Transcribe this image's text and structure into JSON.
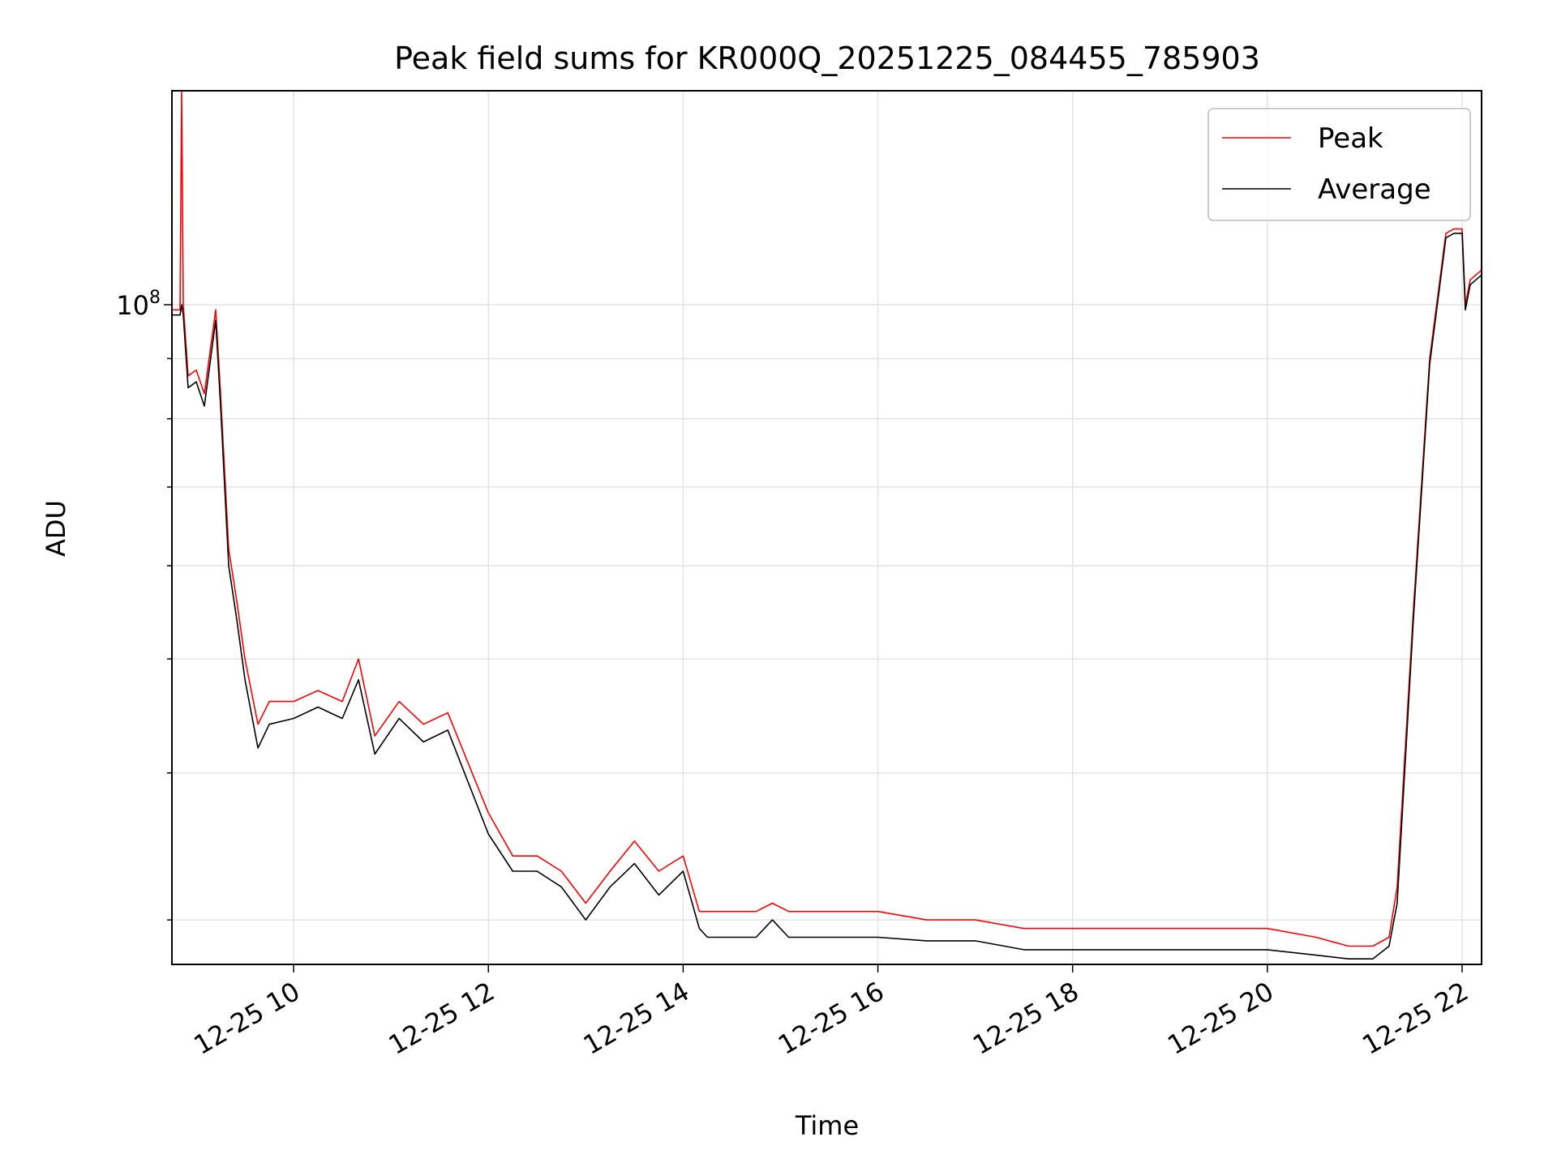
{
  "chart_data": {
    "type": "line",
    "title": "Peak field sums for KR000Q_20251225_084455_785903",
    "xlabel": "Time",
    "ylabel": "ADU",
    "y_scale": "log",
    "ylim": [
      27500000,
      152000000
    ],
    "xlim": [
      "12-25 08:45",
      "12-25 22:12"
    ],
    "x_ticks": [
      "12-25 10",
      "12-25 12",
      "12-25 14",
      "12-25 16",
      "12-25 18",
      "12-25 20",
      "12-25 22"
    ],
    "y_ticks": [
      "10^8"
    ],
    "grid": true,
    "legend": "upper right",
    "colors": {
      "Peak": "#ff0000",
      "Average": "#000000"
    },
    "series": [
      {
        "name": "Peak",
        "x": [
          "12-25 08:45",
          "12-25 08:50",
          "12-25 08:51",
          "12-25 08:52",
          "12-25 08:55",
          "12-25 09:00",
          "12-25 09:05",
          "12-25 09:12",
          "12-25 09:15",
          "12-25 09:20",
          "12-25 09:25",
          "12-25 09:30",
          "12-25 09:38",
          "12-25 09:45",
          "12-25 10:00",
          "12-25 10:15",
          "12-25 10:30",
          "12-25 10:40",
          "12-25 10:50",
          "12-25 11:05",
          "12-25 11:20",
          "12-25 11:35",
          "12-25 11:50",
          "12-25 12:00",
          "12-25 12:15",
          "12-25 12:30",
          "12-25 12:45",
          "12-25 13:00",
          "12-25 13:15",
          "12-25 13:30",
          "12-25 13:45",
          "12-25 14:00",
          "12-25 14:10",
          "12-25 14:15",
          "12-25 14:30",
          "12-25 14:45",
          "12-25 14:55",
          "12-25 15:05",
          "12-25 15:30",
          "12-25 16:00",
          "12-25 16:30",
          "12-25 17:00",
          "12-25 17:30",
          "12-25 18:00",
          "12-25 18:30",
          "12-25 19:00",
          "12-25 19:30",
          "12-25 20:00",
          "12-25 20:30",
          "12-25 20:50",
          "12-25 21:05",
          "12-25 21:15",
          "12-25 21:20",
          "12-25 21:30",
          "12-25 21:40",
          "12-25 21:50",
          "12-25 21:55",
          "12-25 22:00",
          "12-25 22:02",
          "12-25 22:05",
          "12-25 22:12"
        ],
        "y": [
          99000000,
          99000000,
          152000000,
          100000000,
          87000000,
          88000000,
          84000000,
          99000000,
          84000000,
          62000000,
          56000000,
          50000000,
          44000000,
          46000000,
          46000000,
          47000000,
          46000000,
          50000000,
          43000000,
          46000000,
          44000000,
          45000000,
          40000000,
          37000000,
          34000000,
          34000000,
          33000000,
          31000000,
          33000000,
          35000000,
          33000000,
          34000000,
          30500000,
          30500000,
          30500000,
          30500000,
          31000000,
          30500000,
          30500000,
          30500000,
          30000000,
          30000000,
          29500000,
          29500000,
          29500000,
          29500000,
          29500000,
          29500000,
          29000000,
          28500000,
          28500000,
          29000000,
          32000000,
          55000000,
          90000000,
          115000000,
          116000000,
          116000000,
          100000000,
          105000000,
          107000000
        ]
      },
      {
        "name": "Average",
        "x": [
          "12-25 08:45",
          "12-25 08:50",
          "12-25 08:51",
          "12-25 08:52",
          "12-25 08:55",
          "12-25 09:00",
          "12-25 09:05",
          "12-25 09:12",
          "12-25 09:15",
          "12-25 09:20",
          "12-25 09:25",
          "12-25 09:30",
          "12-25 09:38",
          "12-25 09:45",
          "12-25 10:00",
          "12-25 10:15",
          "12-25 10:30",
          "12-25 10:40",
          "12-25 10:50",
          "12-25 11:05",
          "12-25 11:20",
          "12-25 11:35",
          "12-25 11:50",
          "12-25 12:00",
          "12-25 12:15",
          "12-25 12:30",
          "12-25 12:45",
          "12-25 13:00",
          "12-25 13:15",
          "12-25 13:30",
          "12-25 13:45",
          "12-25 14:00",
          "12-25 14:10",
          "12-25 14:15",
          "12-25 14:30",
          "12-25 14:45",
          "12-25 14:55",
          "12-25 15:05",
          "12-25 15:30",
          "12-25 16:00",
          "12-25 16:30",
          "12-25 17:00",
          "12-25 17:30",
          "12-25 18:00",
          "12-25 18:30",
          "12-25 19:00",
          "12-25 19:30",
          "12-25 20:00",
          "12-25 20:30",
          "12-25 20:50",
          "12-25 21:05",
          "12-25 21:15",
          "12-25 21:20",
          "12-25 21:30",
          "12-25 21:40",
          "12-25 21:50",
          "12-25 21:55",
          "12-25 22:00",
          "12-25 22:02",
          "12-25 22:05",
          "12-25 22:12"
        ],
        "y": [
          98000000,
          98000000,
          100000000,
          98000000,
          85000000,
          86000000,
          82000000,
          97000000,
          82000000,
          60000000,
          54000000,
          48000000,
          42000000,
          44000000,
          44500000,
          45500000,
          44500000,
          48000000,
          41500000,
          44500000,
          42500000,
          43500000,
          38500000,
          35500000,
          33000000,
          33000000,
          32000000,
          30000000,
          32000000,
          33500000,
          31500000,
          33000000,
          29500000,
          29000000,
          29000000,
          29000000,
          30000000,
          29000000,
          29000000,
          29000000,
          28800000,
          28800000,
          28300000,
          28300000,
          28300000,
          28300000,
          28300000,
          28300000,
          28000000,
          27800000,
          27800000,
          28500000,
          31000000,
          54000000,
          89000000,
          114000000,
          115000000,
          115000000,
          99000000,
          104000000,
          106000000
        ]
      }
    ]
  }
}
